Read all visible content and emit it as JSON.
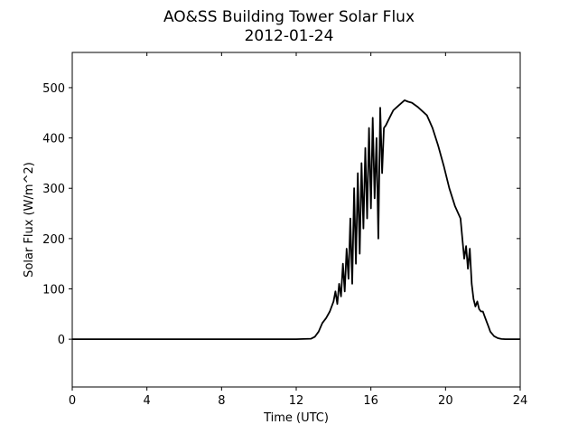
{
  "chart_data": {
    "type": "line",
    "title": "AO&SS Building Tower Solar Flux",
    "subtitle": "2012-01-24",
    "xlabel": "Time (UTC)",
    "ylabel": "Solar Flux (W/m^2)",
    "xlim": [
      0,
      24
    ],
    "ylim": [
      -95,
      570
    ],
    "xticks": [
      0,
      4,
      8,
      12,
      16,
      20,
      24
    ],
    "yticks": [
      0,
      100,
      200,
      300,
      400,
      500
    ],
    "grid": false,
    "legend": "none",
    "line_color": "#000000",
    "series": [
      {
        "x": [
          0,
          4,
          8,
          12,
          12.8,
          13.0,
          13.2,
          13.4,
          13.6,
          13.8,
          14.0,
          14.1,
          14.2,
          14.3,
          14.4,
          14.5,
          14.6,
          14.7,
          14.8,
          14.9,
          15.0,
          15.1,
          15.2,
          15.3,
          15.4,
          15.5,
          15.6,
          15.7,
          15.8,
          15.9,
          16.0,
          16.1,
          16.2,
          16.3,
          16.4,
          16.5,
          16.6,
          16.7,
          16.8,
          17.0,
          17.2,
          17.5,
          17.8,
          18.0,
          18.2,
          18.5,
          18.8,
          19.0,
          19.3,
          19.6,
          19.9,
          20.2,
          20.5,
          20.8,
          21.0,
          21.1,
          21.2,
          21.3,
          21.4,
          21.5,
          21.6,
          21.7,
          21.8,
          21.9,
          22.0,
          22.1,
          22.2,
          22.3,
          22.4,
          22.6,
          22.8,
          23.0,
          23.2,
          23.4,
          23.6,
          24.0
        ],
        "y": [
          0,
          0,
          0,
          0,
          1,
          5,
          15,
          32,
          42,
          55,
          75,
          95,
          70,
          110,
          85,
          150,
          95,
          180,
          120,
          240,
          110,
          300,
          150,
          330,
          170,
          350,
          220,
          380,
          240,
          420,
          260,
          440,
          280,
          400,
          200,
          460,
          330,
          420,
          425,
          440,
          455,
          465,
          475,
          472,
          470,
          462,
          452,
          445,
          420,
          385,
          345,
          300,
          265,
          240,
          160,
          185,
          140,
          180,
          110,
          80,
          65,
          75,
          60,
          55,
          55,
          45,
          35,
          25,
          15,
          6,
          2,
          0.5,
          0,
          0,
          0,
          0
        ]
      }
    ]
  }
}
